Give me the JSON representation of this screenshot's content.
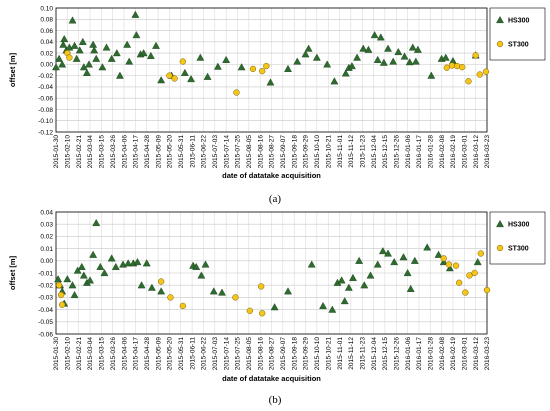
{
  "chart_data": [
    {
      "type": "scatter",
      "panel_label": "(a)",
      "title": "",
      "xlabel": "date of datatake acquisition",
      "ylabel": "offset [m]",
      "ylim": [
        -0.12,
        0.1
      ],
      "yticks": [
        "0.10",
        "0.08",
        "0.06",
        "0.04",
        "0.02",
        "0.00",
        "-0.02",
        "-0.04",
        "-0.06",
        "-0.08",
        "-0.10",
        "-0.12"
      ],
      "xlim": [
        "2015-01-30",
        "2016-03-23"
      ],
      "xticks": [
        "2015-01-30",
        "2015-02-10",
        "2015-02-21",
        "2015-03-04",
        "2015-03-15",
        "2015-03-26",
        "2015-04-06",
        "2015-04-17",
        "2015-04-28",
        "2015-05-09",
        "2015-05-20",
        "2015-05-31",
        "2015-06-11",
        "2015-06-22",
        "2015-07-03",
        "2015-07-14",
        "2015-07-25",
        "2015-08-05",
        "2015-08-16",
        "2015-08-27",
        "2015-09-07",
        "2015-09-18",
        "2015-09-29",
        "2015-10-10",
        "2015-10-21",
        "2015-11-01",
        "2015-11-12",
        "2015-11-23",
        "2015-12-04",
        "2015-12-15",
        "2015-12-26",
        "2016-01-06",
        "2016-01-17",
        "2016-01-28",
        "2016-02-08",
        "2016-02-19",
        "2016-03-01",
        "2016-03-12",
        "2016-03-23"
      ],
      "grid": true,
      "legend_position": "right",
      "series": [
        {
          "name": "HS300",
          "marker": "triangle",
          "color": "#2e6b2e",
          "points": [
            [
              "2015-01-30",
              -0.005
            ],
            [
              "2015-02-02",
              0.01
            ],
            [
              "2015-02-05",
              0.0
            ],
            [
              "2015-02-06",
              0.035
            ],
            [
              "2015-02-07",
              0.045
            ],
            [
              "2015-02-09",
              0.025
            ],
            [
              "2015-02-12",
              0.03
            ],
            [
              "2015-02-15",
              0.078
            ],
            [
              "2015-02-17",
              0.033
            ],
            [
              "2015-02-19",
              0.01
            ],
            [
              "2015-02-22",
              0.025
            ],
            [
              "2015-02-25",
              0.04
            ],
            [
              "2015-02-26",
              -0.005
            ],
            [
              "2015-03-01",
              -0.015
            ],
            [
              "2015-03-03",
              0.0
            ],
            [
              "2015-03-07",
              0.035
            ],
            [
              "2015-03-08",
              0.025
            ],
            [
              "2015-03-10",
              0.01
            ],
            [
              "2015-03-16",
              -0.005
            ],
            [
              "2015-03-20",
              0.03
            ],
            [
              "2015-03-25",
              0.01
            ],
            [
              "2015-03-30",
              0.02
            ],
            [
              "2015-04-02",
              -0.02
            ],
            [
              "2015-04-09",
              0.035
            ],
            [
              "2015-04-11",
              0.005
            ],
            [
              "2015-04-17",
              0.088
            ],
            [
              "2015-04-18",
              0.052
            ],
            [
              "2015-04-22",
              0.018
            ],
            [
              "2015-04-25",
              0.02
            ],
            [
              "2015-05-02",
              0.015
            ],
            [
              "2015-05-07",
              0.033
            ],
            [
              "2015-05-12",
              -0.028
            ],
            [
              "2015-05-22",
              -0.02
            ],
            [
              "2015-06-04",
              -0.015
            ],
            [
              "2015-06-10",
              -0.026
            ],
            [
              "2015-06-19",
              0.012
            ],
            [
              "2015-06-26",
              -0.022
            ],
            [
              "2015-07-06",
              -0.004
            ],
            [
              "2015-07-14",
              0.008
            ],
            [
              "2015-07-29",
              -0.005
            ],
            [
              "2015-08-26",
              -0.032
            ],
            [
              "2015-09-12",
              -0.008
            ],
            [
              "2015-09-21",
              0.005
            ],
            [
              "2015-09-29",
              0.018
            ],
            [
              "2015-10-02",
              0.028
            ],
            [
              "2015-10-10",
              0.012
            ],
            [
              "2015-10-20",
              0.0
            ],
            [
              "2015-10-27",
              -0.03
            ],
            [
              "2015-11-07",
              -0.016
            ],
            [
              "2015-11-10",
              -0.006
            ],
            [
              "2015-11-13",
              -0.003
            ],
            [
              "2015-11-18",
              0.012
            ],
            [
              "2015-11-24",
              0.028
            ],
            [
              "2015-11-29",
              0.026
            ],
            [
              "2015-12-05",
              0.052
            ],
            [
              "2015-12-08",
              0.008
            ],
            [
              "2015-12-11",
              0.048
            ],
            [
              "2015-12-14",
              0.003
            ],
            [
              "2015-12-18",
              0.028
            ],
            [
              "2015-12-23",
              0.005
            ],
            [
              "2015-12-28",
              0.022
            ],
            [
              "2016-01-03",
              0.014
            ],
            [
              "2016-01-08",
              0.004
            ],
            [
              "2016-01-11",
              0.03
            ],
            [
              "2016-01-14",
              0.005
            ],
            [
              "2016-01-16",
              0.026
            ],
            [
              "2016-01-29",
              -0.02
            ],
            [
              "2016-02-08",
              0.01
            ],
            [
              "2016-02-12",
              0.012
            ],
            [
              "2016-02-19",
              0.006
            ],
            [
              "2016-03-12",
              0.016
            ]
          ]
        },
        {
          "name": "ST300",
          "marker": "circle",
          "color": "#f5c518",
          "points": [
            [
              "2015-02-10",
              0.02
            ],
            [
              "2015-02-12",
              0.012
            ],
            [
              "2015-05-20",
              -0.02
            ],
            [
              "2015-05-25",
              -0.025
            ],
            [
              "2015-06-02",
              0.005
            ],
            [
              "2015-07-24",
              -0.05
            ],
            [
              "2015-08-09",
              -0.008
            ],
            [
              "2015-08-18",
              -0.012
            ],
            [
              "2015-08-22",
              -0.003
            ],
            [
              "2016-02-13",
              -0.006
            ],
            [
              "2016-02-18",
              -0.002
            ],
            [
              "2016-02-23",
              -0.003
            ],
            [
              "2016-02-28",
              -0.005
            ],
            [
              "2016-03-05",
              -0.03
            ],
            [
              "2016-03-12",
              0.016
            ],
            [
              "2016-03-16",
              -0.018
            ],
            [
              "2016-03-22",
              -0.013
            ]
          ]
        }
      ]
    },
    {
      "type": "scatter",
      "panel_label": "(b)",
      "title": "",
      "xlabel": "date of datatake acquisition",
      "ylabel": "offset [m]",
      "ylim": [
        -0.06,
        0.04
      ],
      "yticks": [
        "0.04",
        "0.03",
        "0.02",
        "0.01",
        "0.00",
        "-0.01",
        "-0.02",
        "-0.03",
        "-0.04",
        "-0.05",
        "-0.06"
      ],
      "xlim": [
        "2015-01-30",
        "2016-03-23"
      ],
      "xticks": [
        "2015-01-30",
        "2015-02-10",
        "2015-02-21",
        "2015-03-04",
        "2015-03-15",
        "2015-03-26",
        "2015-04-06",
        "2015-04-17",
        "2015-04-28",
        "2015-05-09",
        "2015-05-20",
        "2015-05-31",
        "2015-06-11",
        "2015-06-22",
        "2015-07-03",
        "2015-07-14",
        "2015-07-25",
        "2015-08-05",
        "2015-08-16",
        "2015-08-27",
        "2015-09-07",
        "2015-09-18",
        "2015-09-29",
        "2015-10-10",
        "2015-10-21",
        "2015-11-01",
        "2015-11-12",
        "2015-11-23",
        "2015-12-04",
        "2015-12-15",
        "2015-12-26",
        "2016-01-06",
        "2016-01-17",
        "2016-01-28",
        "2016-02-08",
        "2016-02-19",
        "2016-03-01",
        "2016-03-12",
        "2016-03-23"
      ],
      "grid": true,
      "legend_position": "right",
      "series": [
        {
          "name": "HS300",
          "marker": "triangle",
          "color": "#2e6b2e",
          "points": [
            [
              "2015-02-01",
              -0.015
            ],
            [
              "2015-02-03",
              -0.02
            ],
            [
              "2015-02-05",
              -0.025
            ],
            [
              "2015-02-07",
              -0.035
            ],
            [
              "2015-02-10",
              -0.015
            ],
            [
              "2015-02-15",
              -0.02
            ],
            [
              "2015-02-17",
              -0.028
            ],
            [
              "2015-02-20",
              -0.008
            ],
            [
              "2015-02-24",
              -0.005
            ],
            [
              "2015-02-26",
              -0.012
            ],
            [
              "2015-03-01",
              -0.018
            ],
            [
              "2015-03-04",
              -0.016
            ],
            [
              "2015-03-07",
              0.005
            ],
            [
              "2015-03-10",
              0.031
            ],
            [
              "2015-03-14",
              -0.005
            ],
            [
              "2015-03-18",
              -0.01
            ],
            [
              "2015-03-25",
              0.002
            ],
            [
              "2015-03-29",
              -0.005
            ],
            [
              "2015-04-05",
              -0.003
            ],
            [
              "2015-04-10",
              -0.002
            ],
            [
              "2015-04-15",
              -0.002
            ],
            [
              "2015-04-19",
              -0.001
            ],
            [
              "2015-04-23",
              -0.02
            ],
            [
              "2015-04-28",
              -0.002
            ],
            [
              "2015-05-03",
              -0.022
            ],
            [
              "2015-05-12",
              -0.025
            ],
            [
              "2015-06-12",
              -0.004
            ],
            [
              "2015-06-15",
              -0.005
            ],
            [
              "2015-06-20",
              -0.012
            ],
            [
              "2015-06-24",
              -0.003
            ],
            [
              "2015-07-02",
              -0.025
            ],
            [
              "2015-07-10",
              -0.026
            ],
            [
              "2015-08-30",
              -0.038
            ],
            [
              "2015-09-12",
              -0.025
            ],
            [
              "2015-10-05",
              -0.003
            ],
            [
              "2015-10-16",
              -0.037
            ],
            [
              "2015-10-25",
              -0.04
            ],
            [
              "2015-10-30",
              -0.018
            ],
            [
              "2015-11-03",
              -0.016
            ],
            [
              "2015-11-06",
              -0.033
            ],
            [
              "2015-11-10",
              -0.022
            ],
            [
              "2015-11-14",
              -0.014
            ],
            [
              "2015-11-20",
              0.0
            ],
            [
              "2015-11-25",
              -0.02
            ],
            [
              "2015-12-01",
              -0.012
            ],
            [
              "2015-12-08",
              -0.003
            ],
            [
              "2015-12-13",
              0.008
            ],
            [
              "2015-12-18",
              0.006
            ],
            [
              "2015-12-24",
              -0.001
            ],
            [
              "2016-01-02",
              0.003
            ],
            [
              "2016-01-06",
              -0.01
            ],
            [
              "2016-01-09",
              -0.023
            ],
            [
              "2016-01-13",
              0.0
            ],
            [
              "2016-01-25",
              0.011
            ],
            [
              "2016-02-05",
              0.005
            ],
            [
              "2016-02-10",
              -0.001
            ],
            [
              "2016-02-16",
              -0.006
            ],
            [
              "2016-03-14",
              -0.001
            ]
          ]
        },
        {
          "name": "ST300",
          "marker": "circle",
          "color": "#f5c518",
          "points": [
            [
              "2015-02-02",
              -0.02
            ],
            [
              "2015-02-04",
              -0.028
            ],
            [
              "2015-02-05",
              -0.036
            ],
            [
              "2015-05-12",
              -0.017
            ],
            [
              "2015-05-21",
              -0.03
            ],
            [
              "2015-06-02",
              -0.037
            ],
            [
              "2015-07-23",
              -0.03
            ],
            [
              "2015-08-06",
              -0.041
            ],
            [
              "2015-08-17",
              -0.021
            ],
            [
              "2015-08-18",
              -0.043
            ],
            [
              "2016-02-10",
              0.002
            ],
            [
              "2016-02-15",
              -0.003
            ],
            [
              "2016-02-22",
              -0.004
            ],
            [
              "2016-02-25",
              -0.018
            ],
            [
              "2016-03-02",
              -0.026
            ],
            [
              "2016-03-06",
              -0.012
            ],
            [
              "2016-03-11",
              -0.01
            ],
            [
              "2016-03-17",
              0.006
            ],
            [
              "2016-03-23",
              -0.024
            ]
          ]
        }
      ]
    }
  ]
}
